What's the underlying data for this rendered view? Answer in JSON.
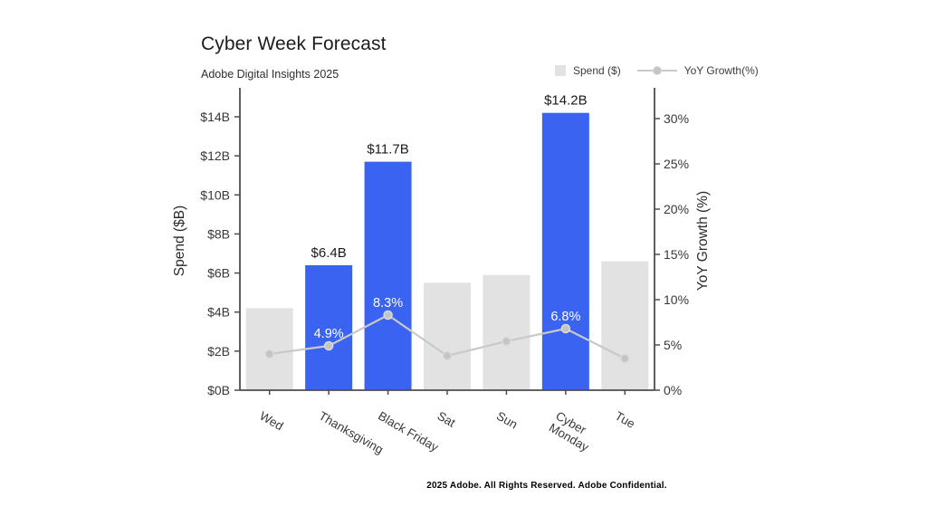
{
  "page": {
    "background": "#ffffff"
  },
  "footer": {
    "text": "2025 Adobe. All Rights Reserved. Adobe Confidential."
  },
  "chart_data": {
    "type": "bar+line",
    "title": "Cyber Week Forecast",
    "subtitle": "Adobe Digital Insights 2025",
    "legend_position": "top-right",
    "grid": false,
    "categories": [
      "Wed",
      "Thanksgiving",
      "Black Friday",
      "Sat",
      "Sun",
      "Cyber\nMonday",
      "Tue"
    ],
    "series": [
      {
        "name": "Spend ($)",
        "type": "bar",
        "axis": "left",
        "values": [
          4.2,
          6.4,
          11.7,
          5.5,
          5.9,
          14.2,
          6.6
        ],
        "highlighted": [
          false,
          true,
          true,
          false,
          false,
          true,
          false
        ],
        "data_labels": [
          "",
          "$6.4B",
          "$11.7B",
          "",
          "",
          "$14.2B",
          ""
        ]
      },
      {
        "name": "YoY Growth(%)",
        "type": "line",
        "axis": "right",
        "values": [
          4.0,
          4.9,
          8.3,
          3.8,
          5.4,
          6.8,
          3.5
        ],
        "data_labels": [
          "",
          "4.9%",
          "8.3%",
          "",
          "",
          "6.8%",
          ""
        ]
      }
    ],
    "left_axis": {
      "label": "Spend ($B)",
      "tick_labels": [
        "$0B",
        "$2B",
        "$4B",
        "$6B",
        "$8B",
        "$10B",
        "$12B",
        "$14B"
      ],
      "tick_values": [
        0,
        2,
        4,
        6,
        8,
        10,
        12,
        14
      ],
      "range": [
        0,
        14
      ]
    },
    "right_axis": {
      "label": "YoY Growth (%)",
      "tick_labels": [
        "0%",
        "5%",
        "10%",
        "15%",
        "20%",
        "25%",
        "30%"
      ],
      "tick_values": [
        0,
        5,
        10,
        15,
        20,
        25,
        30
      ],
      "range": [
        0,
        30
      ]
    },
    "colors": {
      "bar_highlight": "#3b63f2",
      "bar_default": "#e2e2e3",
      "line": "#c9c9c9",
      "marker_fill": "#c4c4c4",
      "marker_stroke": "#dadada",
      "axis": "#4d4d4d",
      "tick_label": "#383838",
      "axis_title": "#2b2b2b",
      "x_label": "#3a3a3a",
      "bar_label": "#1a1a1a",
      "line_label": "#ffffff"
    }
  }
}
